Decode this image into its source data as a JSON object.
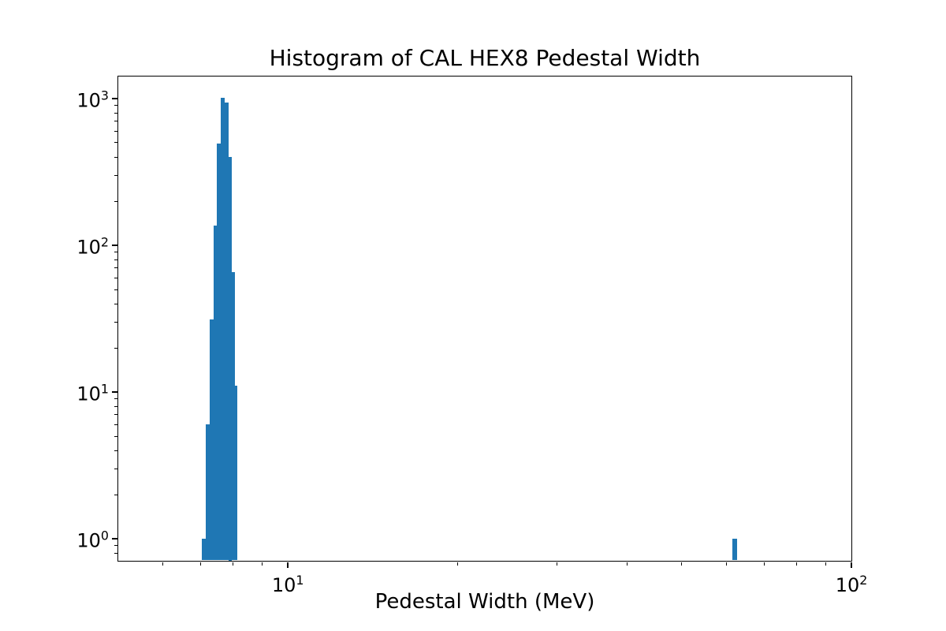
{
  "chart_data": {
    "type": "bar",
    "subtype": "histogram",
    "title": "Histogram of CAL HEX8 Pedestal Width",
    "xlabel": "Pedestal Width (MeV)",
    "ylabel": "",
    "xscale": "log",
    "yscale": "log",
    "xlim": [
      5,
      100
    ],
    "ylim": [
      0.708,
      1413
    ],
    "grid": false,
    "legend": null,
    "bar_color": "#1f77b4",
    "axis_color": "#000000",
    "background_color": "#ffffff",
    "x_major_ticks": [
      {
        "value": 10,
        "base": "10",
        "exp": "1"
      },
      {
        "value": 100,
        "base": "10",
        "exp": "2"
      }
    ],
    "y_major_ticks": [
      {
        "value": 1,
        "base": "10",
        "exp": "0"
      },
      {
        "value": 10,
        "base": "10",
        "exp": "1"
      },
      {
        "value": 100,
        "base": "10",
        "exp": "2"
      },
      {
        "value": 1000,
        "base": "10",
        "exp": "3"
      }
    ],
    "x_minor_ticks": [
      6,
      7,
      8,
      9,
      20,
      30,
      40,
      50,
      60,
      70,
      80,
      90
    ],
    "y_minor_ticks": [
      0.8,
      0.9,
      2,
      3,
      4,
      5,
      6,
      7,
      8,
      9,
      20,
      30,
      40,
      50,
      60,
      70,
      80,
      90,
      200,
      300,
      400,
      500,
      600,
      700,
      800,
      900
    ],
    "bins": [
      {
        "x0": 7.04,
        "x1": 7.16,
        "count": 1
      },
      {
        "x0": 7.16,
        "x1": 7.27,
        "count": 6
      },
      {
        "x0": 7.27,
        "x1": 7.39,
        "count": 31
      },
      {
        "x0": 7.39,
        "x1": 7.5,
        "count": 135
      },
      {
        "x0": 7.5,
        "x1": 7.62,
        "count": 490
      },
      {
        "x0": 7.62,
        "x1": 7.73,
        "count": 1000
      },
      {
        "x0": 7.73,
        "x1": 7.85,
        "count": 930
      },
      {
        "x0": 7.85,
        "x1": 7.96,
        "count": 400
      },
      {
        "x0": 7.96,
        "x1": 8.07,
        "count": 65
      },
      {
        "x0": 8.07,
        "x1": 8.16,
        "count": 11
      },
      {
        "x0": 61.5,
        "x1": 62.7,
        "count": 1
      }
    ]
  }
}
